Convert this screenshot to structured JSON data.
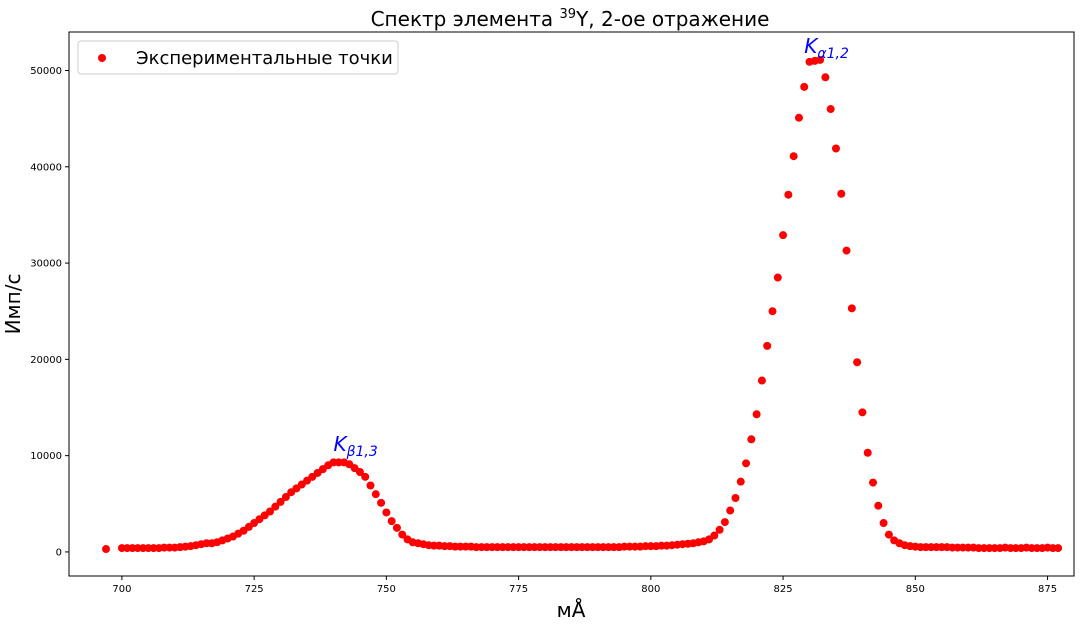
{
  "chart_data": {
    "type": "scatter",
    "title_prefix": "Спектр элемента ",
    "title_sup": "39",
    "title_suffix": "Y, 2-ое отражение",
    "xlabel": "мÅ",
    "ylabel": "Имп/с",
    "xlim": [
      690,
      880
    ],
    "ylim": [
      -2500,
      54000
    ],
    "xticks": [
      700,
      725,
      750,
      775,
      800,
      825,
      850,
      875
    ],
    "yticks": [
      0,
      10000,
      20000,
      30000,
      40000,
      50000
    ],
    "grid": false,
    "legend_position": "top-left",
    "marker_color": "#ff0000",
    "annotation_color": "#0000ff",
    "series": [
      {
        "name": "Экспериментальные точки",
        "x": [
          697,
          700,
          701,
          702,
          703,
          704,
          705,
          706,
          707,
          708,
          709,
          710,
          711,
          712,
          713,
          714,
          715,
          716,
          717,
          718,
          719,
          720,
          721,
          722,
          723,
          724,
          725,
          726,
          727,
          728,
          729,
          730,
          731,
          732,
          733,
          734,
          735,
          736,
          737,
          738,
          739,
          740,
          741,
          742,
          743,
          744,
          745,
          746,
          747,
          748,
          749,
          750,
          751,
          752,
          753,
          754,
          755,
          756,
          757,
          758,
          759,
          760,
          761,
          762,
          763,
          764,
          765,
          766,
          767,
          768,
          769,
          770,
          771,
          772,
          773,
          774,
          775,
          776,
          777,
          778,
          779,
          780,
          781,
          782,
          783,
          784,
          785,
          786,
          787,
          788,
          789,
          790,
          791,
          792,
          793,
          794,
          795,
          796,
          797,
          798,
          799,
          800,
          801,
          802,
          803,
          804,
          805,
          806,
          807,
          808,
          809,
          810,
          811,
          812,
          813,
          814,
          815,
          816,
          817,
          818,
          819,
          820,
          821,
          822,
          823,
          824,
          825,
          826,
          827,
          828,
          829,
          830,
          831,
          832,
          833,
          834,
          835,
          836,
          837,
          838,
          839,
          840,
          841,
          842,
          843,
          844,
          845,
          846,
          847,
          848,
          849,
          850,
          851,
          852,
          853,
          854,
          855,
          856,
          857,
          858,
          859,
          860,
          861,
          862,
          863,
          864,
          865,
          866,
          867,
          868,
          869,
          870,
          871,
          872,
          873,
          874,
          875,
          876,
          877
        ],
        "y": [
          300,
          400,
          400,
          400,
          400,
          400,
          400,
          400,
          400,
          450,
          450,
          450,
          500,
          550,
          600,
          700,
          800,
          900,
          900,
          1000,
          1200,
          1400,
          1600,
          1900,
          2200,
          2600,
          3000,
          3400,
          3800,
          4200,
          4700,
          5200,
          5700,
          6200,
          6600,
          7000,
          7400,
          7800,
          8200,
          8600,
          9000,
          9300,
          9300,
          9300,
          9100,
          8700,
          8300,
          7800,
          6900,
          6000,
          5100,
          4100,
          3200,
          2500,
          1800,
          1300,
          1000,
          900,
          800,
          700,
          650,
          650,
          600,
          600,
          550,
          550,
          550,
          550,
          500,
          500,
          500,
          500,
          500,
          500,
          500,
          500,
          500,
          500,
          500,
          500,
          500,
          500,
          500,
          500,
          500,
          500,
          500,
          500,
          500,
          500,
          500,
          500,
          500,
          500,
          500,
          500,
          550,
          550,
          550,
          550,
          600,
          600,
          600,
          650,
          650,
          700,
          750,
          800,
          850,
          900,
          1000,
          1100,
          1300,
          1700,
          2300,
          3100,
          4300,
          5600,
          7300,
          9200,
          11700,
          14300,
          17800,
          21400,
          25000,
          28500,
          32900,
          37100,
          41100,
          45100,
          48300,
          50900,
          51000,
          51100,
          49300,
          46000,
          41900,
          37200,
          31300,
          25300,
          19700,
          14500,
          10300,
          7200,
          4800,
          3000,
          1800,
          1200,
          900,
          700,
          600,
          550,
          500,
          500,
          500,
          500,
          500,
          500,
          450,
          450,
          450,
          450,
          450,
          400,
          400,
          400,
          400,
          400,
          450,
          400,
          400,
          400,
          450,
          400,
          400,
          400,
          450,
          400,
          400
        ]
      }
    ],
    "annotations": [
      {
        "base": "K",
        "sub": "β1,3",
        "x": 740,
        "y": 10500,
        "font_size": 20,
        "sub_size": 14
      },
      {
        "base": "K",
        "sub": "α1,2",
        "x": 829,
        "y": 51800,
        "font_size": 20,
        "sub_size": 14
      }
    ]
  }
}
